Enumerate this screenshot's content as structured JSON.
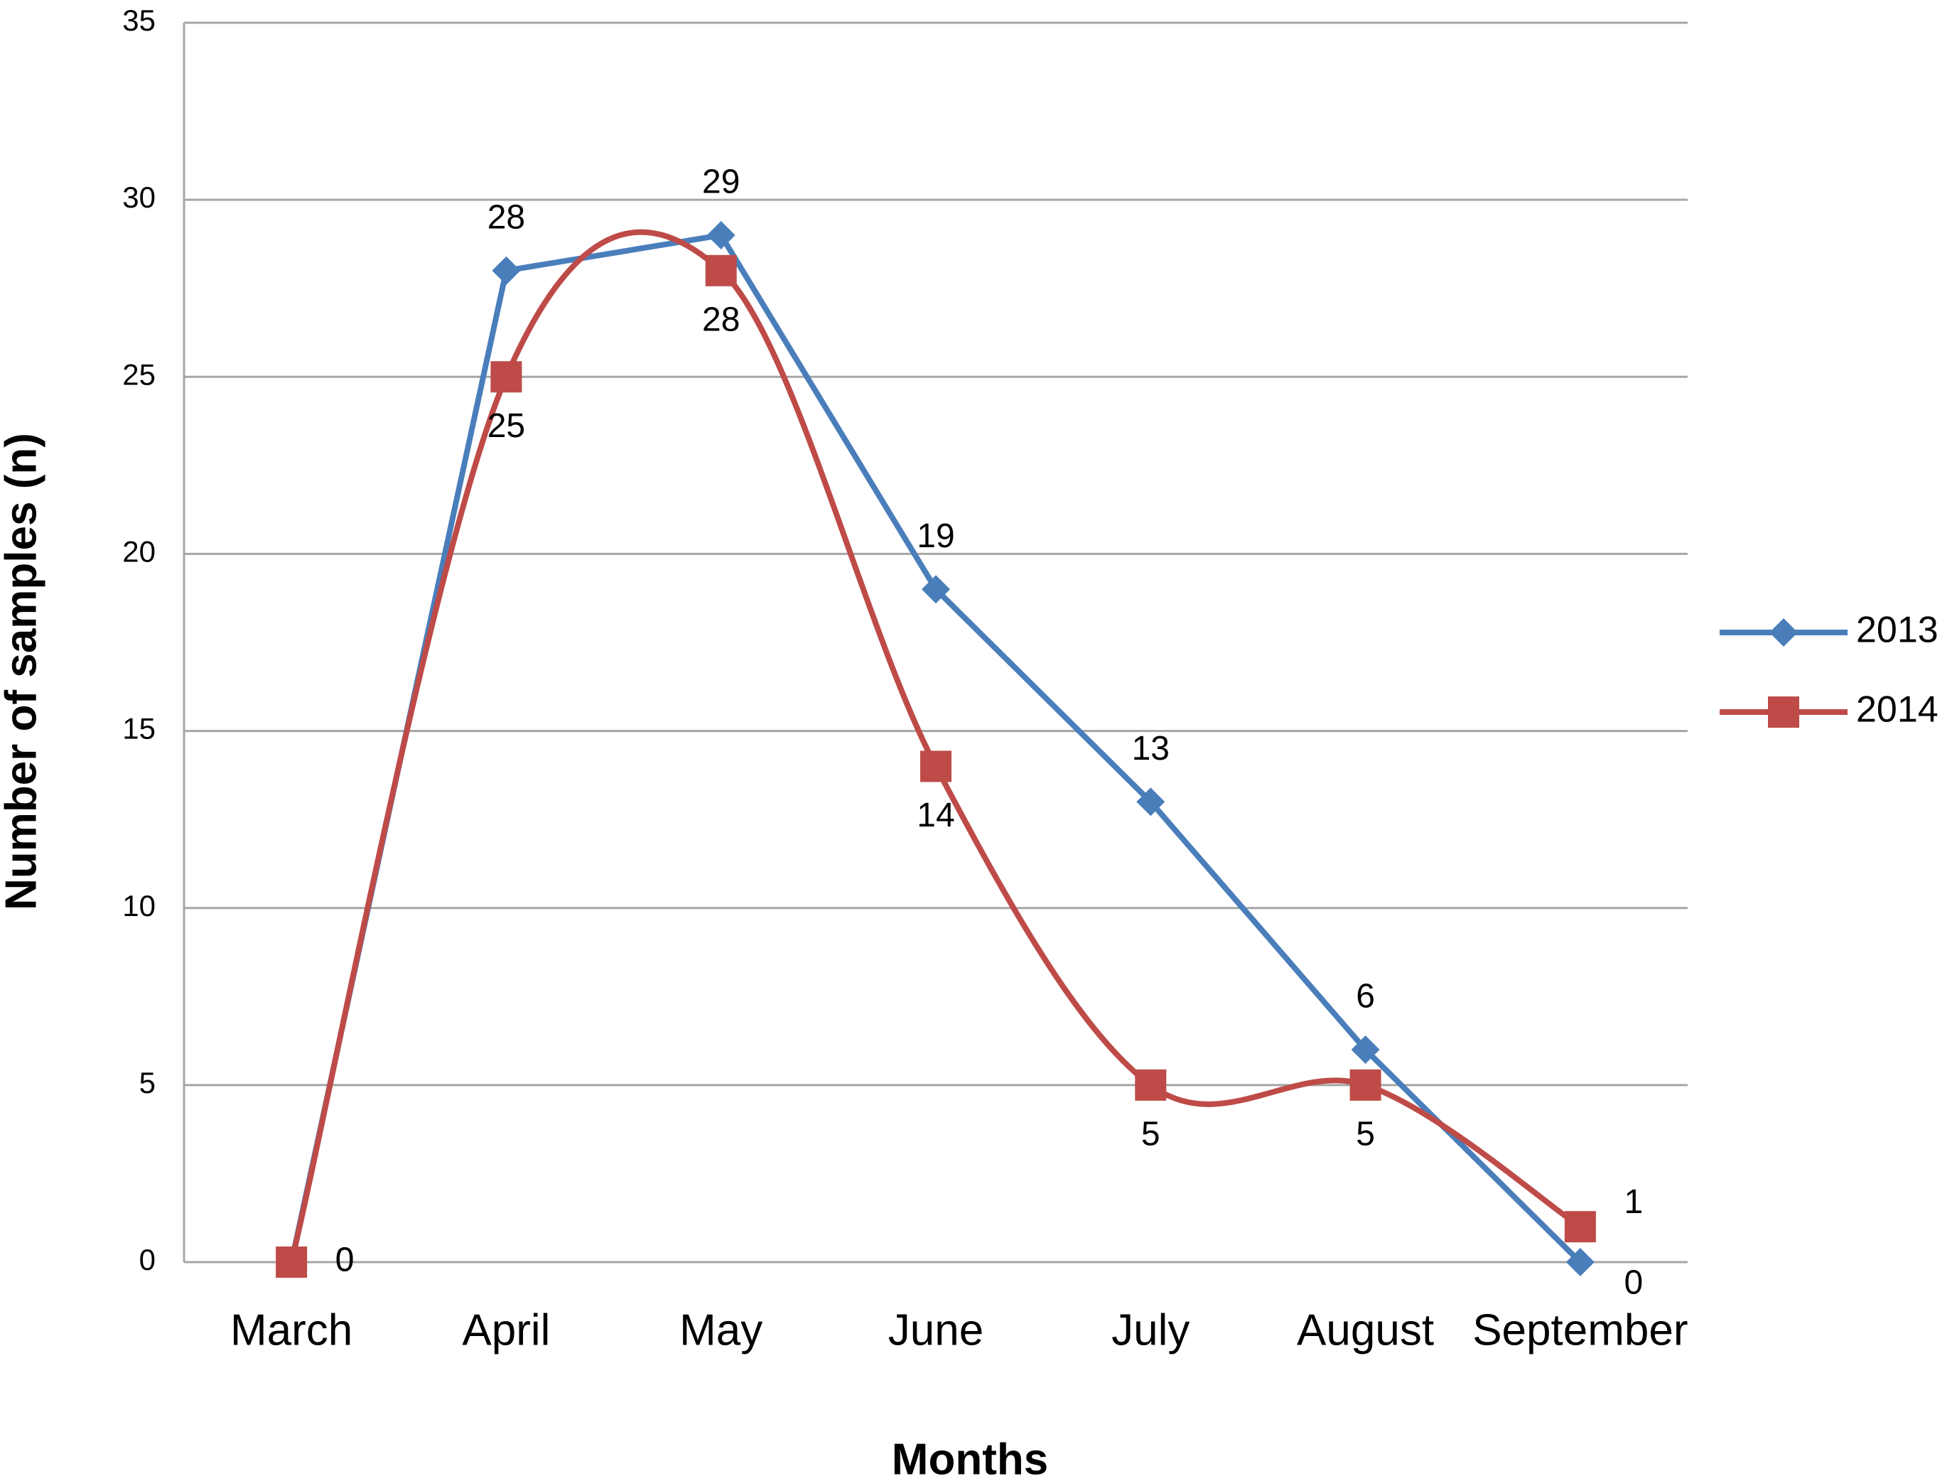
{
  "chart_data": {
    "type": "line",
    "x_label": "Months",
    "y_label": "Number of samples (n)",
    "categories": [
      "March",
      "April",
      "May",
      "June",
      "July",
      "August",
      "September"
    ],
    "series": [
      {
        "name": "2013",
        "color": "#4a7ebb",
        "marker": "diamond",
        "smooth": false,
        "values": [
          0,
          28,
          29,
          19,
          13,
          6,
          0
        ]
      },
      {
        "name": "2014",
        "color": "#be4b48",
        "marker": "square",
        "smooth": true,
        "values": [
          0,
          25,
          28,
          14,
          5,
          5,
          1
        ]
      }
    ],
    "ylim": [
      0,
      35
    ],
    "yticks": [
      0,
      5,
      10,
      15,
      20,
      25,
      30,
      35
    ],
    "grid": true,
    "legend": "right"
  }
}
